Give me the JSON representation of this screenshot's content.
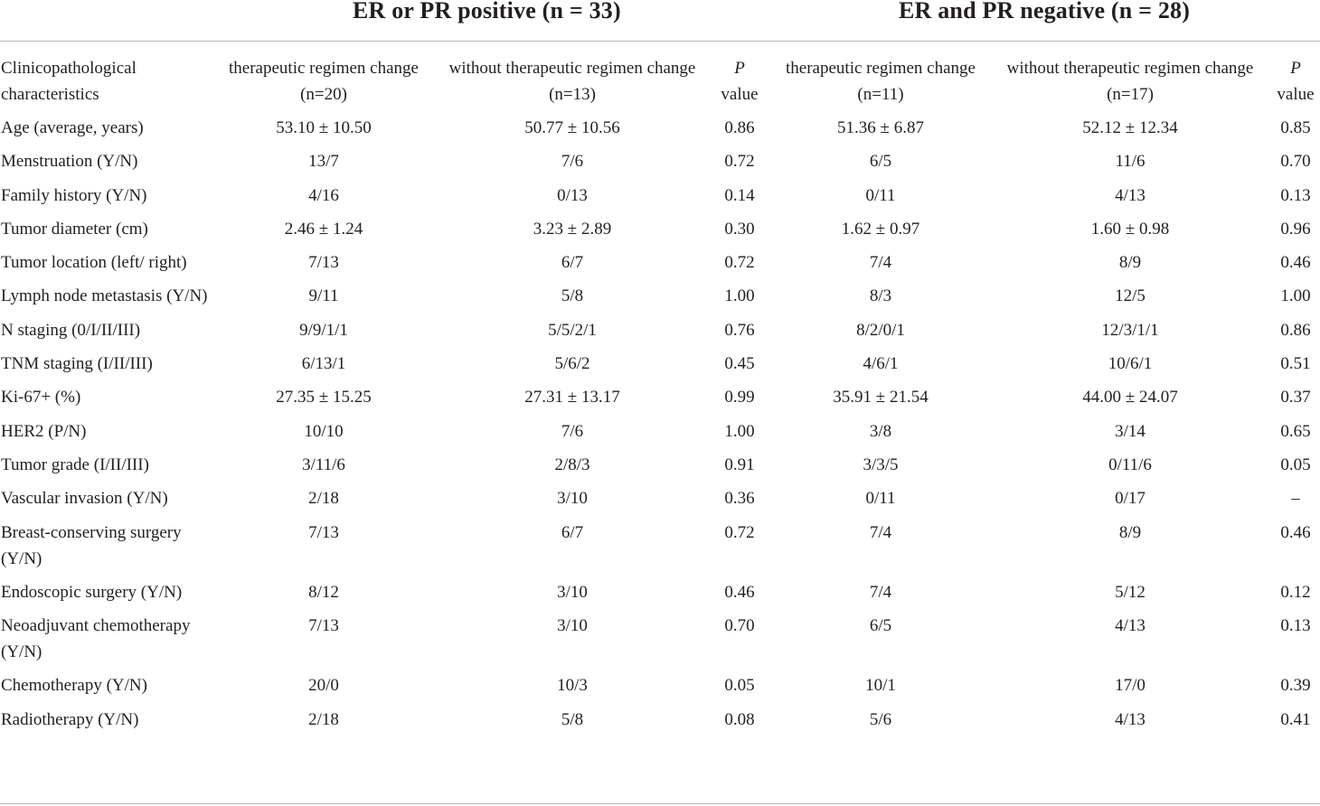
{
  "groups": [
    {
      "label": "ER or PR positive (n = 33)"
    },
    {
      "label": "ER and PR negative (n = 28)"
    }
  ],
  "columns": {
    "characteristics": "Clinicopathological characteristics",
    "therapeutic_change": "therapeutic regimen change (n=20)",
    "without_change": "without therapeutic regimen change (n=13)",
    "p_value_italic": "P",
    "p_value_rest": "value",
    "therapeutic_change_2": "therapeutic regimen change (n=11)",
    "without_change_2": "without therapeutic regimen change (n=17)"
  },
  "rows": [
    {
      "label": "Age (average, years)",
      "values": [
        "53.10 ± 10.50",
        "50.77 ± 10.56",
        "0.86",
        "51.36 ± 6.87",
        "52.12 ± 12.34",
        "0.85"
      ]
    },
    {
      "label": "Menstruation (Y/N)",
      "values": [
        "13/7",
        "7/6",
        "0.72",
        "6/5",
        "11/6",
        "0.70"
      ]
    },
    {
      "label": "Family history (Y/N)",
      "values": [
        "4/16",
        "0/13",
        "0.14",
        "0/11",
        "4/13",
        "0.13"
      ]
    },
    {
      "label": "Tumor diameter (cm)",
      "values": [
        "2.46 ± 1.24",
        "3.23 ± 2.89",
        "0.30",
        "1.62 ± 0.97",
        "1.60 ± 0.98",
        "0.96"
      ]
    },
    {
      "label": "Tumor location (left/ right)",
      "values": [
        "7/13",
        "6/7",
        "0.72",
        "7/4",
        "8/9",
        "0.46"
      ]
    },
    {
      "label": "Lymph node metastasis (Y/N)",
      "values": [
        "9/11",
        "5/8",
        "1.00",
        "8/3",
        "12/5",
        "1.00"
      ]
    },
    {
      "label": "N staging (0/I/II/III)",
      "values": [
        "9/9/1/1",
        "5/5/2/1",
        "0.76",
        "8/2/0/1",
        "12/3/1/1",
        "0.86"
      ]
    },
    {
      "label": "TNM staging (I/II/III)",
      "values": [
        "6/13/1",
        "5/6/2",
        "0.45",
        "4/6/1",
        "10/6/1",
        "0.51"
      ]
    },
    {
      "label": "Ki-67+ (%)",
      "values": [
        "27.35 ± 15.25",
        "27.31 ± 13.17",
        "0.99",
        "35.91 ± 21.54",
        "44.00 ± 24.07",
        "0.37"
      ]
    },
    {
      "label": "HER2 (P/N)",
      "values": [
        "10/10",
        "7/6",
        "1.00",
        "3/8",
        "3/14",
        "0.65"
      ]
    },
    {
      "label": "Tumor grade (I/II/III)",
      "values": [
        "3/11/6",
        "2/8/3",
        "0.91",
        "3/3/5",
        "0/11/6",
        "0.05"
      ]
    },
    {
      "label": "Vascular invasion (Y/N)",
      "values": [
        "2/18",
        "3/10",
        "0.36",
        "0/11",
        "0/17",
        "–"
      ]
    },
    {
      "label": "Breast-conserving surgery (Y/N)",
      "values": [
        "7/13",
        "6/7",
        "0.72",
        "7/4",
        "8/9",
        "0.46"
      ]
    },
    {
      "label": "Endoscopic surgery (Y/N)",
      "values": [
        "8/12",
        "3/10",
        "0.46",
        "7/4",
        "5/12",
        "0.12"
      ]
    },
    {
      "label": "Neoadjuvant chemotherapy (Y/N)",
      "values": [
        "7/13",
        "3/10",
        "0.70",
        "6/5",
        "4/13",
        "0.13"
      ]
    },
    {
      "label": "Chemotherapy (Y/N)",
      "values": [
        "20/0",
        "10/3",
        "0.05",
        "10/1",
        "17/0",
        "0.39"
      ]
    },
    {
      "label": "Radiotherapy (Y/N)",
      "values": [
        "2/18",
        "5/8",
        "0.08",
        "5/6",
        "4/13",
        "0.41"
      ]
    }
  ]
}
